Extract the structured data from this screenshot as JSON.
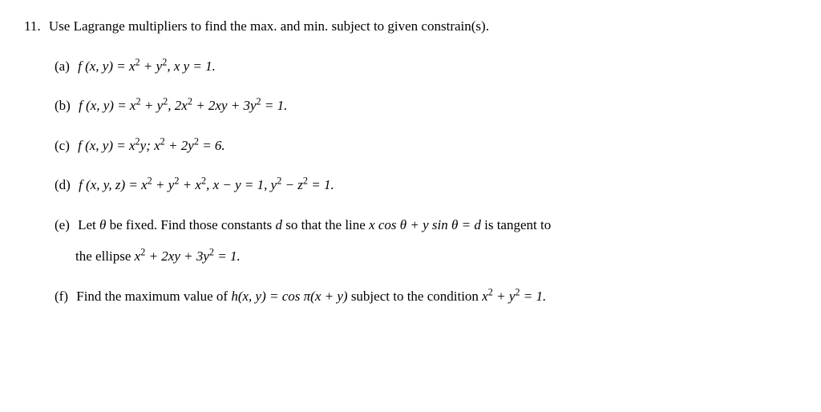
{
  "problem": {
    "number": "11.",
    "title": "Use Lagrange multipliers to find the max. and min. subject to given constrain(s)."
  },
  "subparts": {
    "a": {
      "label": "(a)",
      "func_lhs": "f (x, y) = x",
      "exp1": "2",
      "plus_y": " + y",
      "exp2": "2",
      "comma_constraint": ", x y = 1."
    },
    "b": {
      "label": "(b)",
      "func_lhs": "f (x, y) = x",
      "exp1": "2",
      "plus_y": " + y",
      "exp2": "2",
      "comma_2x": ", 2x",
      "exp3": "2",
      "plus_2xy_3y": " + 2xy + 3y",
      "exp4": "2",
      "eq1": " = 1."
    },
    "c": {
      "label": "(c)",
      "func_lhs": "f (x, y) = x",
      "exp1": "2",
      "y_semicolon": "y; x",
      "exp2": "2",
      "plus_2y": " + 2y",
      "exp3": "2",
      "eq6": " = 6."
    },
    "d": {
      "label": "(d)",
      "func_lhs": "f (x, y, z) = x",
      "exp1": "2",
      "plus_y": " + y",
      "exp2": "2",
      "plus_x": " + x",
      "exp3": "2",
      "comma_xy": ", x − y = 1, y",
      "exp4": "2",
      "minus_z": " − z",
      "exp5": "2",
      "eq1": " = 1."
    },
    "e": {
      "label": "(e)",
      "line1_pre": "Let ",
      "theta1": "θ",
      "line1_mid": " be fixed. Find those constants ",
      "d_var": "d",
      "line1_post": " so that the line ",
      "xcos": "x cos ",
      "theta2": "θ",
      "plus_ysin": " + y sin ",
      "theta3": "θ",
      "eq_d": " = d",
      "tangent": " is tangent to",
      "line2_pre": "the ellipse ",
      "x": "x",
      "exp1": "2",
      "plus_2xy_3y": " + 2xy + 3y",
      "exp2": "2",
      "eq1": " = 1."
    },
    "f": {
      "label": "(f)",
      "pre": "Find the maximum value of ",
      "h_lhs": "h(x, y) = cos ",
      "pi": "π",
      "xy": "(x + y)",
      "mid": " subject to the condition ",
      "x": "x",
      "exp1": "2",
      "plus_y": " + y",
      "exp2": "2",
      "eq1": " = 1."
    }
  }
}
